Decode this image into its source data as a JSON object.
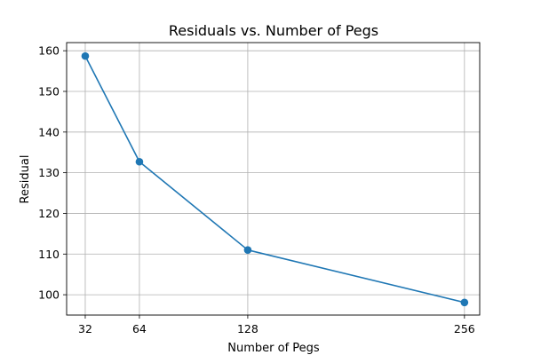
{
  "chart_data": {
    "type": "line",
    "title": "Residuals vs. Number of Pegs",
    "xlabel": "Number of Pegs",
    "ylabel": "Residual",
    "x": [
      32,
      64,
      128,
      256
    ],
    "xlim": [
      21,
      265
    ],
    "ylim": [
      95,
      162
    ],
    "xticks": [
      32,
      64,
      128,
      256
    ],
    "yticks": [
      100,
      110,
      120,
      130,
      140,
      150,
      160
    ],
    "grid": true,
    "marker": "circle",
    "series": [
      {
        "values": [
          158.7,
          132.7,
          111.0,
          98.1
        ],
        "color": "#1f77b4"
      }
    ]
  }
}
